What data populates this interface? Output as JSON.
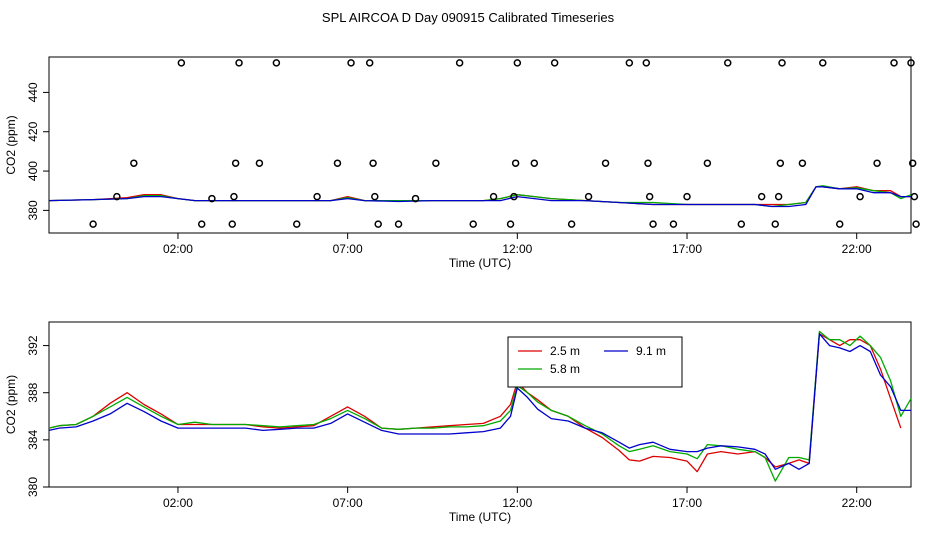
{
  "title": "SPL AIRCOA D  Day 090915  Calibrated Timeseries",
  "colors": {
    "s25": "#dd0000",
    "s58": "#00aa00",
    "s91": "#0000cc",
    "axis": "#000000",
    "points": "#000000"
  },
  "chart_data": [
    {
      "type": "scatter+line",
      "name": "top-panel",
      "xlabel": "Time (UTC)",
      "ylabel": "CO2 (ppm)",
      "xlim": [
        -1.8,
        23.6
      ],
      "ylim": [
        368.5,
        458
      ],
      "xticks": [
        2,
        7,
        12,
        17,
        22
      ],
      "xtick_labels": [
        "02:00",
        "07:00",
        "12:00",
        "17:00",
        "22:00"
      ],
      "yticks": [
        380,
        400,
        420,
        440
      ],
      "ytick_labels": [
        "380",
        "400",
        "420",
        "440"
      ],
      "points": [
        [
          -0.5,
          373
        ],
        [
          0.2,
          387
        ],
        [
          0.7,
          404
        ],
        [
          2.1,
          455
        ],
        [
          2.7,
          373
        ],
        [
          3.0,
          386
        ],
        [
          3.6,
          373
        ],
        [
          3.65,
          387
        ],
        [
          3.7,
          404
        ],
        [
          3.8,
          455
        ],
        [
          4.4,
          404
        ],
        [
          4.9,
          455
        ],
        [
          5.5,
          373
        ],
        [
          6.1,
          387
        ],
        [
          6.7,
          404
        ],
        [
          7.1,
          455
        ],
        [
          7.65,
          455
        ],
        [
          7.75,
          404
        ],
        [
          7.8,
          387
        ],
        [
          7.9,
          373
        ],
        [
          8.5,
          373
        ],
        [
          9.0,
          386
        ],
        [
          9.6,
          404
        ],
        [
          10.3,
          455
        ],
        [
          10.7,
          373
        ],
        [
          11.3,
          387
        ],
        [
          11.8,
          373
        ],
        [
          11.9,
          387
        ],
        [
          11.95,
          404
        ],
        [
          12.0,
          455
        ],
        [
          12.5,
          404
        ],
        [
          13.1,
          455
        ],
        [
          13.6,
          373
        ],
        [
          14.1,
          387
        ],
        [
          14.6,
          404
        ],
        [
          15.3,
          455
        ],
        [
          15.8,
          455
        ],
        [
          15.85,
          404
        ],
        [
          15.9,
          387
        ],
        [
          16.0,
          373
        ],
        [
          16.6,
          373
        ],
        [
          17.0,
          387
        ],
        [
          17.6,
          404
        ],
        [
          18.2,
          455
        ],
        [
          18.6,
          373
        ],
        [
          19.2,
          387
        ],
        [
          19.6,
          373
        ],
        [
          19.7,
          387
        ],
        [
          19.75,
          404
        ],
        [
          19.8,
          455
        ],
        [
          20.4,
          404
        ],
        [
          21.0,
          455
        ],
        [
          21.5,
          373
        ],
        [
          22.1,
          387
        ],
        [
          22.6,
          404
        ],
        [
          23.1,
          455
        ],
        [
          23.6,
          455
        ],
        [
          23.65,
          404
        ],
        [
          23.7,
          387
        ],
        [
          23.75,
          373
        ]
      ],
      "series": [
        {
          "name": "2.5 m",
          "x": [
            -1.8,
            -0.5,
            0.5,
            1.0,
            1.5,
            2.0,
            2.5,
            3.5,
            4.5,
            5.5,
            6.5,
            7.0,
            7.5,
            8.5,
            9.5,
            10.5,
            11.0,
            11.5,
            12.0,
            12.5,
            13.0,
            14.0,
            15.0,
            16.0,
            17.0,
            18.0,
            19.0,
            19.5,
            20.0,
            20.5,
            20.8,
            21.0,
            21.5,
            22.0,
            22.5,
            23.0,
            23.3,
            23.6
          ],
          "y": [
            385,
            385.5,
            386.5,
            388,
            388,
            386,
            385,
            385,
            385,
            385,
            385,
            387,
            385,
            385,
            385,
            385,
            385,
            386,
            388,
            387,
            386,
            385,
            384,
            383,
            383,
            383,
            383,
            383,
            383,
            384,
            392,
            392,
            391,
            392,
            390,
            390,
            387,
            387
          ]
        },
        {
          "name": "5.8 m",
          "x": [
            -1.8,
            -0.5,
            0.5,
            1.0,
            1.5,
            2.0,
            2.5,
            3.5,
            4.5,
            5.5,
            6.5,
            7.0,
            7.5,
            8.5,
            9.5,
            10.5,
            11.0,
            11.5,
            12.0,
            12.5,
            13.0,
            14.0,
            15.0,
            16.0,
            17.0,
            18.0,
            19.0,
            19.5,
            20.0,
            20.5,
            20.8,
            21.0,
            21.5,
            22.0,
            22.5,
            23.0,
            23.3,
            23.6
          ],
          "y": [
            385,
            385.5,
            386,
            387.5,
            387.5,
            386,
            385,
            385,
            385,
            385,
            385,
            386.5,
            385,
            385,
            385,
            385,
            385,
            386,
            388,
            387,
            386,
            385,
            384,
            384,
            383,
            383,
            383,
            382,
            383,
            384,
            392,
            392.5,
            391,
            391.5,
            390,
            389,
            386,
            388
          ]
        },
        {
          "name": "9.1 m",
          "x": [
            -1.8,
            -0.5,
            0.5,
            1.0,
            1.5,
            2.0,
            2.5,
            3.5,
            4.5,
            5.5,
            6.5,
            7.0,
            7.5,
            8.5,
            9.5,
            10.5,
            11.0,
            11.5,
            12.0,
            12.5,
            13.0,
            14.0,
            15.0,
            16.0,
            17.0,
            18.0,
            19.0,
            19.5,
            20.0,
            20.5,
            20.8,
            21.0,
            21.5,
            22.0,
            22.5,
            23.0,
            23.3,
            23.6
          ],
          "y": [
            385,
            385.5,
            386,
            387,
            387,
            386,
            385,
            385,
            385,
            385,
            385,
            386,
            385,
            384.5,
            385,
            385,
            385,
            385,
            387,
            386,
            385,
            385,
            384,
            383,
            383,
            383,
            383,
            382,
            382,
            383,
            392,
            392,
            391,
            391,
            389,
            389,
            387,
            387
          ]
        }
      ]
    },
    {
      "type": "line",
      "name": "bottom-panel",
      "xlabel": "Time (UTC)",
      "ylabel": "CO2 (ppm)",
      "xlim": [
        -1.8,
        23.6
      ],
      "ylim": [
        380,
        394
      ],
      "xticks": [
        2,
        7,
        12,
        17,
        22
      ],
      "xtick_labels": [
        "02:00",
        "07:00",
        "12:00",
        "17:00",
        "22:00"
      ],
      "yticks": [
        380,
        384,
        388,
        392
      ],
      "ytick_labels": [
        "380",
        "384",
        "388",
        "392"
      ],
      "legend": {
        "position": "top-center",
        "entries": [
          "2.5 m",
          "9.1 m",
          "5.8 m"
        ]
      },
      "series": [
        {
          "name": "2.5 m",
          "x": [
            -1.8,
            -1.5,
            -1.0,
            -0.5,
            0.0,
            0.5,
            1.0,
            1.5,
            2.0,
            2.5,
            3.0,
            3.5,
            4.0,
            4.5,
            5.0,
            5.5,
            6.0,
            6.5,
            7.0,
            7.5,
            8.0,
            8.5,
            9.0,
            9.5,
            10.0,
            10.5,
            11.0,
            11.5,
            11.8,
            12.0,
            12.3,
            12.6,
            13.0,
            13.5,
            14.0,
            14.5,
            15.0,
            15.3,
            15.6,
            16.0,
            16.5,
            17.0,
            17.3,
            17.6,
            18.0,
            18.5,
            19.0,
            19.3,
            19.6,
            20.0,
            20.3,
            20.6,
            20.9,
            21.2,
            21.5,
            21.8,
            22.1,
            22.4,
            22.7,
            23.0,
            23.3
          ],
          "y": [
            385,
            385.2,
            385.3,
            386,
            387.1,
            388.0,
            387.0,
            386.2,
            385.3,
            385.3,
            385.3,
            385.3,
            385.3,
            385.1,
            385.0,
            385.1,
            385.2,
            386.0,
            386.8,
            386.0,
            385.0,
            384.9,
            385.0,
            385.1,
            385.2,
            385.3,
            385.4,
            386.0,
            387.0,
            388.9,
            388.0,
            387.4,
            386.5,
            386.0,
            385.0,
            384.2,
            383.1,
            382.3,
            382.2,
            382.6,
            382.5,
            382.2,
            381.3,
            382.8,
            383.0,
            382.8,
            383.0,
            382.5,
            381.7,
            382.0,
            382.3,
            382.0,
            393.0,
            392.5,
            392.0,
            392.5,
            392.5,
            392.0,
            390.0,
            387.5,
            385.0
          ]
        },
        {
          "name": "5.8 m",
          "x": [
            -1.8,
            -1.5,
            -1.0,
            -0.5,
            0.0,
            0.5,
            1.0,
            1.5,
            2.0,
            2.5,
            3.0,
            3.5,
            4.0,
            4.5,
            5.0,
            5.5,
            6.0,
            6.5,
            7.0,
            7.5,
            8.0,
            8.5,
            9.0,
            9.5,
            10.0,
            10.5,
            11.0,
            11.5,
            11.8,
            12.0,
            12.3,
            12.6,
            13.0,
            13.5,
            14.0,
            14.5,
            15.0,
            15.3,
            15.6,
            16.0,
            16.5,
            17.0,
            17.3,
            17.6,
            18.0,
            18.5,
            19.0,
            19.3,
            19.6,
            20.0,
            20.3,
            20.6,
            20.9,
            21.2,
            21.5,
            21.8,
            22.1,
            22.4,
            22.7,
            23.0,
            23.3,
            23.6
          ],
          "y": [
            385.0,
            385.2,
            385.3,
            386.0,
            386.8,
            387.6,
            386.8,
            386.0,
            385.3,
            385.5,
            385.3,
            385.3,
            385.3,
            385.2,
            385.1,
            385.2,
            385.3,
            385.8,
            386.5,
            385.8,
            385.0,
            384.9,
            385.0,
            385.0,
            385.1,
            385.1,
            385.2,
            385.6,
            386.5,
            388.6,
            388.0,
            387.2,
            386.5,
            386.0,
            385.2,
            384.5,
            383.5,
            383.0,
            383.2,
            383.5,
            383.0,
            382.8,
            382.4,
            383.6,
            383.5,
            383.2,
            383.0,
            382.5,
            380.5,
            382.5,
            382.5,
            382.3,
            393.2,
            392.5,
            392.5,
            392.0,
            392.8,
            392.0,
            391.0,
            389.0,
            386.0,
            387.5
          ]
        },
        {
          "name": "9.1 m",
          "x": [
            -1.8,
            -1.5,
            -1.0,
            -0.5,
            0.0,
            0.5,
            1.0,
            1.5,
            2.0,
            2.5,
            3.0,
            3.5,
            4.0,
            4.5,
            5.0,
            5.5,
            6.0,
            6.5,
            7.0,
            7.5,
            8.0,
            8.5,
            9.0,
            9.5,
            10.0,
            10.5,
            11.0,
            11.5,
            11.8,
            12.0,
            12.3,
            12.6,
            13.0,
            13.5,
            14.0,
            14.5,
            15.0,
            15.3,
            15.6,
            16.0,
            16.5,
            17.0,
            17.3,
            17.6,
            18.0,
            18.5,
            19.0,
            19.3,
            19.6,
            20.0,
            20.3,
            20.6,
            20.9,
            21.2,
            21.5,
            21.8,
            22.1,
            22.4,
            22.7,
            23.0,
            23.3,
            23.6
          ],
          "y": [
            384.8,
            385.0,
            385.1,
            385.6,
            386.2,
            387.1,
            386.4,
            385.6,
            385.0,
            385.0,
            385.0,
            385.0,
            385.0,
            384.8,
            384.9,
            385.0,
            385.0,
            385.4,
            386.2,
            385.5,
            384.8,
            384.5,
            384.5,
            384.5,
            384.5,
            384.6,
            384.7,
            385.0,
            386.0,
            388.4,
            387.6,
            386.6,
            385.8,
            385.6,
            385.0,
            384.6,
            383.8,
            383.3,
            383.6,
            383.8,
            383.2,
            383.0,
            383.0,
            383.3,
            383.5,
            383.4,
            383.2,
            382.8,
            381.5,
            382.0,
            381.5,
            382.0,
            393.0,
            392.0,
            391.8,
            391.5,
            392.0,
            391.5,
            389.5,
            388.5,
            386.5,
            386.5
          ]
        }
      ]
    }
  ]
}
